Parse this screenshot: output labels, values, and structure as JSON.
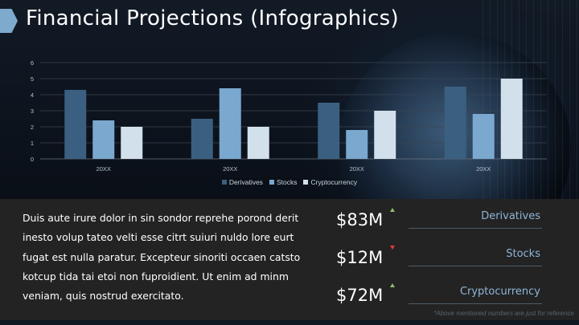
{
  "title": "Financial Projections (Infographics)",
  "chart_data": {
    "type": "bar",
    "categories": [
      "20XX",
      "20XX",
      "20XX",
      "20XX"
    ],
    "series": [
      {
        "name": "Derivatives",
        "values": [
          4.3,
          2.5,
          3.5,
          4.5
        ],
        "color": "#3b5f80"
      },
      {
        "name": "Stocks",
        "values": [
          2.4,
          4.4,
          1.8,
          2.8
        ],
        "color": "#7aa8cf"
      },
      {
        "name": "Cryptocurrency",
        "values": [
          2.0,
          2.0,
          3.0,
          5.0
        ],
        "color": "#d2e0ec"
      }
    ],
    "ylim": [
      0,
      6
    ],
    "yticks": [
      "0",
      "1",
      "2",
      "3",
      "4",
      "5",
      "6"
    ],
    "grid": true,
    "legend_position": "bottom"
  },
  "body_text": "Duis aute irure dolor in sin sondor reprehe porond derit inesto volup tateo velti esse citrt suiuri nuldo lore eurt fugat est nulla paratur. Excepteur sinoriti occaen catsto kotcup tida tai etoi non fuproidient. Ut enim ad minm veniam, quis nostrud exercitato.",
  "metrics": [
    {
      "value": "$83M",
      "label": "Derivatives",
      "trend": "up"
    },
    {
      "value": "$12M",
      "label": "Stocks",
      "trend": "down"
    },
    {
      "value": "$72M",
      "label": "Cryptocurrency",
      "trend": "up"
    }
  ],
  "footnote": "*Above mentioned numbers are just for reference",
  "colors": {
    "up": "#8dc06a",
    "down": "#e23b3b",
    "accent": "#8fb6d8"
  }
}
